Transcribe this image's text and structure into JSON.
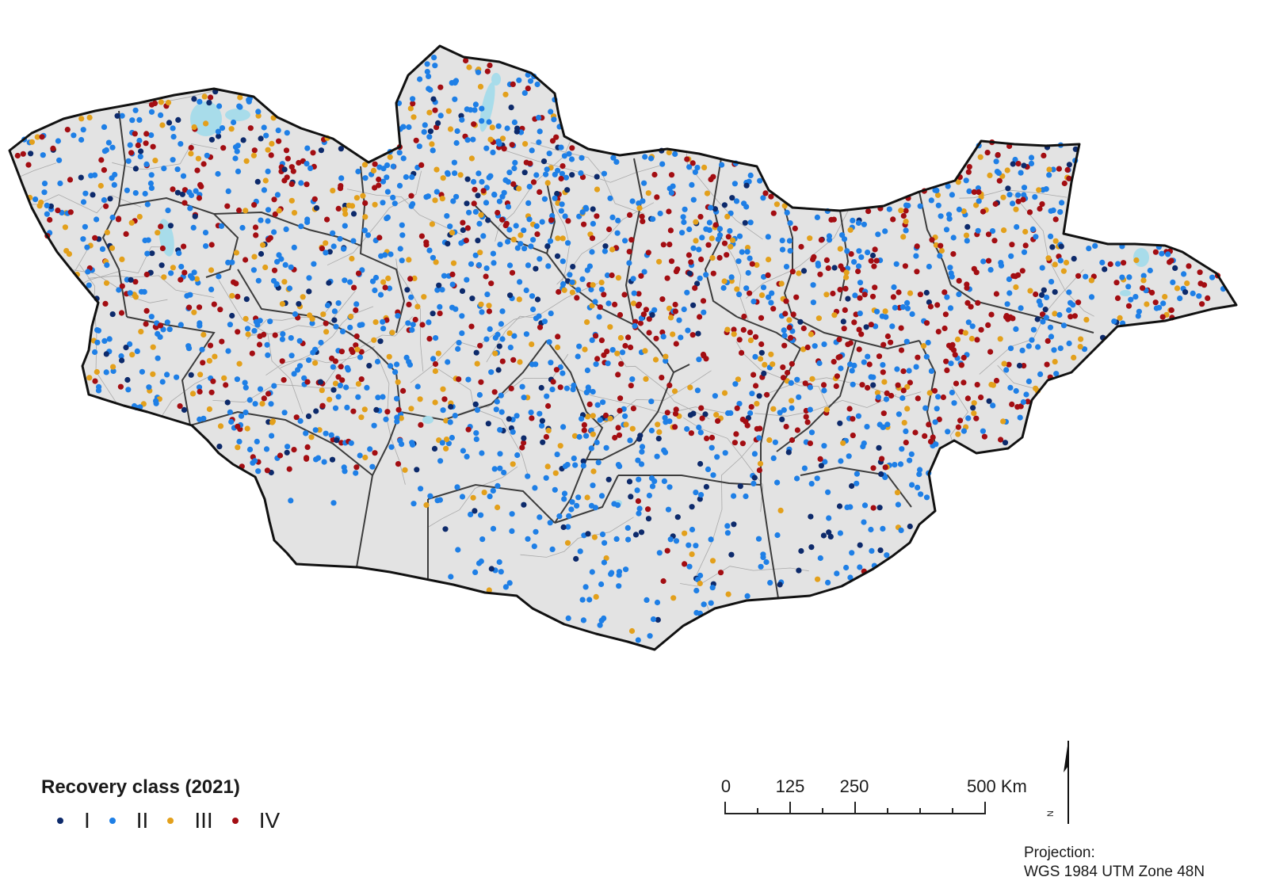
{
  "map": {
    "colors": {
      "land": "#e3e3e3",
      "province_border": "#3c3c3c",
      "district_border": "#a9a9a9",
      "country_border": "#111111",
      "water": "#a8dcea"
    },
    "classes": [
      {
        "label": "I",
        "color": "#0d2a6b"
      },
      {
        "label": "II",
        "color": "#1e7fe6"
      },
      {
        "label": "III",
        "color": "#e3a01b"
      },
      {
        "label": "IV",
        "color": "#a30d12"
      }
    ]
  },
  "legend": {
    "title": "Recovery class (2021)"
  },
  "scalebar": {
    "labels": [
      "0",
      "125",
      "250",
      "500 Km"
    ]
  },
  "north_arrow": {
    "label": "N"
  },
  "projection": {
    "line1": "Projection:",
    "line2": "WGS 1984 UTM Zone 48N"
  }
}
